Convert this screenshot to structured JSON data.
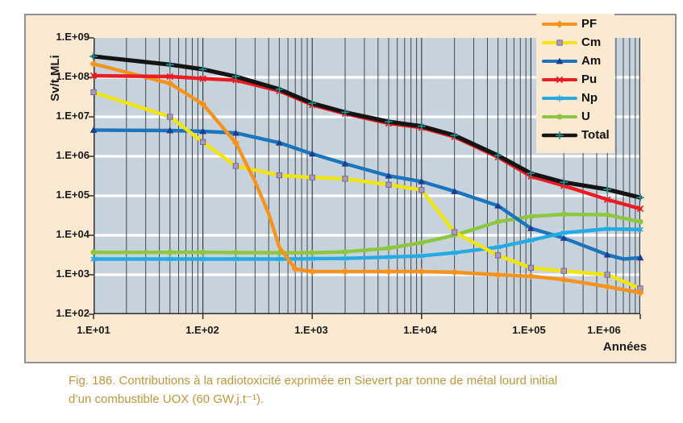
{
  "caption": {
    "line1": "Fig. 186. Contributions à la radiotoxicité exprimée en Sievert par tonne de métal lourd initial",
    "line2": "d’un combustible UOX (60 GW.j.t⁻¹)."
  },
  "colors": {
    "panel_background": "#fbe9d1",
    "plot_background": "#c7d3dc",
    "grid_horizontal": "#ffffff",
    "grid_vertical": "#474747",
    "axis": "#2f2f2f",
    "tick_text": "#1a1a1a",
    "caption_text": "#c49539"
  },
  "chart_data": {
    "type": "line",
    "x_scale": "log",
    "y_scale": "log",
    "x_range": [
      10,
      1000000
    ],
    "y_range": [
      100,
      1000000000
    ],
    "x_axis_label": "Années",
    "y_axis_label": "Sv/t MLi",
    "x_tick_labels": [
      "1.E+01",
      "1.E+02",
      "1.E+03",
      "1.E+04",
      "1.E+05",
      "1.E+06"
    ],
    "y_tick_labels": [
      "1.E+09",
      "1.E+08",
      "1.E+07",
      "1.E+06",
      "1.E+05",
      "1.E+04",
      "1.E+03",
      "1.E+02"
    ],
    "grid": "log-minor-vertical, major-horizontal",
    "legend_position": "top-right",
    "draw_order": [
      "U",
      "Am",
      "Np",
      "Cm",
      "PF",
      "Pu",
      "Total"
    ],
    "series": [
      {
        "name": "PF",
        "color": "#f6921e",
        "marker": "diamond",
        "marker_color": "#f6921e",
        "points": [
          [
            10,
            220000000.0
          ],
          [
            50,
            70000000.0
          ],
          [
            100,
            21000000.0
          ],
          [
            200,
            2200000.0
          ],
          [
            300,
            230000.0,
            0
          ],
          [
            400,
            35000.0,
            0
          ],
          [
            500,
            5000.0,
            0
          ],
          [
            700,
            1400.0
          ],
          [
            1000.0,
            1200.0
          ],
          [
            2000.0,
            1200.0
          ],
          [
            5000.0,
            1200.0
          ],
          [
            10000.0,
            1200.0
          ],
          [
            20000.0,
            1150.0
          ],
          [
            50000.0,
            1000.0
          ],
          [
            100000.0,
            920.0
          ],
          [
            200000.0,
            750.0
          ],
          [
            500000.0,
            500.0
          ],
          [
            1000000.0,
            350.0
          ]
        ]
      },
      {
        "name": "Cm",
        "color": "#f2e40e",
        "marker": "square",
        "marker_color": "#a79bc0",
        "points": [
          [
            10,
            42000000.0
          ],
          [
            50,
            10000000.0
          ],
          [
            100,
            2300000.0
          ],
          [
            200,
            570000.0
          ],
          [
            500,
            330000.0
          ],
          [
            1000.0,
            290000.0
          ],
          [
            2000.0,
            270000.0
          ],
          [
            5000.0,
            190000.0
          ],
          [
            10000.0,
            140000.0
          ],
          [
            20000.0,
            12000.0
          ],
          [
            50000.0,
            3100.0
          ],
          [
            100000.0,
            1500.0
          ],
          [
            200000.0,
            1250.0
          ],
          [
            500000.0,
            1000.0
          ],
          [
            1000000.0,
            450.0
          ]
        ]
      },
      {
        "name": "Am",
        "color": "#1c75bc",
        "marker": "triangle",
        "marker_color": "#1b3e8e",
        "points": [
          [
            10,
            4600000.0
          ],
          [
            50,
            4500000.0
          ],
          [
            100,
            4300000.0
          ],
          [
            200,
            3900000.0
          ],
          [
            500,
            2200000.0
          ],
          [
            1000.0,
            1150000.0
          ],
          [
            2000.0,
            650000.0
          ],
          [
            5000.0,
            320000.0
          ],
          [
            10000.0,
            230000.0
          ],
          [
            20000.0,
            130000.0
          ],
          [
            50000.0,
            56000.0
          ],
          [
            100000.0,
            15000.0
          ],
          [
            200000.0,
            8500.0
          ],
          [
            500000.0,
            3200.0
          ],
          [
            700000.0,
            2500.0,
            0
          ],
          [
            1000000.0,
            2700.0
          ]
        ]
      },
      {
        "name": "Pu",
        "color": "#ec1c24",
        "marker": "x",
        "marker_color": "#ec1c24",
        "points": [
          [
            10,
            110000000.0
          ],
          [
            50,
            105000000.0
          ],
          [
            100,
            93000000.0
          ],
          [
            200,
            85000000.0
          ],
          [
            500,
            45000000.0
          ],
          [
            1000.0,
            20000000.0
          ],
          [
            2000.0,
            12000000.0
          ],
          [
            5000.0,
            6800000.0
          ],
          [
            10000.0,
            5300000.0
          ],
          [
            20000.0,
            3100000.0
          ],
          [
            50000.0,
            950000.0
          ],
          [
            100000.0,
            310000.0
          ],
          [
            200000.0,
            180000.0
          ],
          [
            500000.0,
            80000.0
          ],
          [
            1000000.0,
            47000.0
          ]
        ]
      },
      {
        "name": "Np",
        "color": "#27aae1",
        "marker": "asterisk",
        "marker_color": "#27aae1",
        "points": [
          [
            10,
            2500.0
          ],
          [
            50,
            2500.0
          ],
          [
            100,
            2500.0
          ],
          [
            200,
            2500.0
          ],
          [
            500,
            2500.0
          ],
          [
            1000.0,
            2550.0
          ],
          [
            2000.0,
            2600.0
          ],
          [
            5000.0,
            2800.0
          ],
          [
            10000.0,
            3000.0
          ],
          [
            20000.0,
            3600.0
          ],
          [
            50000.0,
            5000.0
          ],
          [
            100000.0,
            7500.0
          ],
          [
            200000.0,
            11500.0
          ],
          [
            500000.0,
            14500.0
          ],
          [
            1000000.0,
            14000.0
          ]
        ]
      },
      {
        "name": "U",
        "color": "#8dc63f",
        "marker": "circle",
        "marker_color": "#8dc63f",
        "points": [
          [
            10,
            3700.0
          ],
          [
            50,
            3700.0
          ],
          [
            100,
            3700.0
          ],
          [
            200,
            3650.0
          ],
          [
            500,
            3600.0
          ],
          [
            1000.0,
            3600.0
          ],
          [
            2000.0,
            3800.0
          ],
          [
            5000.0,
            4700.0
          ],
          [
            10000.0,
            6500.0
          ],
          [
            20000.0,
            10000.0
          ],
          [
            50000.0,
            22000.0
          ],
          [
            100000.0,
            30000.0
          ],
          [
            200000.0,
            34000.0
          ],
          [
            500000.0,
            33000.0
          ],
          [
            1000000.0,
            22000.0
          ]
        ]
      },
      {
        "name": "Total",
        "color": "#141414",
        "marker": "plus",
        "marker_color": "#1f8f8f",
        "points": [
          [
            10,
            340000000.0
          ],
          [
            50,
            210000000.0
          ],
          [
            100,
            160000000.0
          ],
          [
            200,
            105000000.0
          ],
          [
            500,
            50000000.0
          ],
          [
            1000.0,
            22000000.0
          ],
          [
            2000.0,
            13000000.0
          ],
          [
            5000.0,
            7500000.0
          ],
          [
            10000.0,
            5800000.0
          ],
          [
            20000.0,
            3400000.0
          ],
          [
            50000.0,
            1050000.0
          ],
          [
            100000.0,
            370000.0
          ],
          [
            200000.0,
            220000.0
          ],
          [
            500000.0,
            145000.0
          ],
          [
            1000000.0,
            90000.0
          ]
        ]
      }
    ]
  }
}
